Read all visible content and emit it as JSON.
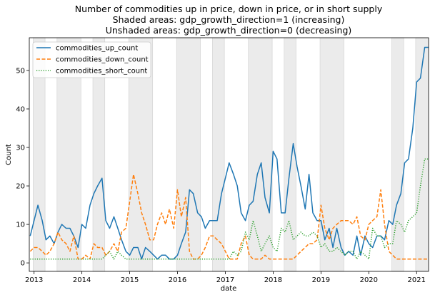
{
  "chart_data": {
    "type": "line",
    "title": [
      "Number of commodities up in price, down in price, or in short supply",
      "Shaded areas: gdp_growth_direction=1 (increasing)",
      "Unshaded areas: gdp_growth_direction=0 (decreasing)"
    ],
    "xlabel": "date",
    "ylabel": "Count",
    "xlim": [
      2012.9,
      2021.25
    ],
    "ylim": [
      -2.2,
      58.5
    ],
    "x_ticks": [
      2013,
      2014,
      2015,
      2016,
      2017,
      2018,
      2019,
      2020,
      2021
    ],
    "y_ticks": [
      0,
      10,
      20,
      30,
      40,
      50
    ],
    "grid": false,
    "legend_position": "top-left",
    "shaded_periods": [
      [
        2012.98,
        2013.23
      ],
      [
        2013.48,
        2013.98
      ],
      [
        2014.23,
        2014.48
      ],
      [
        2014.98,
        2015.48
      ],
      [
        2015.98,
        2016.48
      ],
      [
        2016.73,
        2016.98
      ],
      [
        2017.48,
        2017.98
      ],
      [
        2018.23,
        2018.48
      ],
      [
        2018.98,
        2019.48
      ],
      [
        2020.48,
        2020.73
      ],
      [
        2020.98,
        2021.25
      ]
    ],
    "series": [
      {
        "name": "commodities_up_count",
        "color": "#1f77b4",
        "dash": "solid",
        "x": [
          2012.92,
          2013.0,
          2013.08,
          2013.17,
          2013.25,
          2013.33,
          2013.42,
          2013.5,
          2013.58,
          2013.67,
          2013.75,
          2013.83,
          2013.92,
          2014.0,
          2014.08,
          2014.17,
          2014.25,
          2014.33,
          2014.42,
          2014.5,
          2014.58,
          2014.67,
          2014.75,
          2014.83,
          2014.92,
          2015.0,
          2015.08,
          2015.17,
          2015.25,
          2015.33,
          2015.42,
          2015.5,
          2015.58,
          2015.67,
          2015.75,
          2015.83,
          2015.92,
          2016.0,
          2016.08,
          2016.17,
          2016.25,
          2016.33,
          2016.42,
          2016.5,
          2016.58,
          2016.67,
          2016.75,
          2016.83,
          2016.92,
          2017.0,
          2017.08,
          2017.17,
          2017.25,
          2017.33,
          2017.42,
          2017.5,
          2017.58,
          2017.67,
          2017.75,
          2017.83,
          2017.92,
          2018.0,
          2018.08,
          2018.17,
          2018.25,
          2018.33,
          2018.42,
          2018.5,
          2018.58,
          2018.67,
          2018.75,
          2018.83,
          2018.92,
          2019.0,
          2019.08,
          2019.17,
          2019.25,
          2019.33,
          2019.42,
          2019.5,
          2019.58,
          2019.67,
          2019.75,
          2019.83,
          2019.92,
          2020.0,
          2020.08,
          2020.17,
          2020.25,
          2020.33,
          2020.42,
          2020.5,
          2020.58,
          2020.67,
          2020.75,
          2020.83,
          2020.92,
          2021.0,
          2021.08,
          2021.17,
          2021.25
        ],
        "y": [
          7,
          11,
          15,
          11,
          6,
          7,
          5,
          8,
          10,
          9,
          9,
          7,
          4,
          10,
          9,
          15,
          18,
          20,
          22,
          11,
          9,
          12,
          9,
          6,
          3,
          2,
          4,
          4,
          1,
          4,
          3,
          2,
          1,
          2,
          2,
          1,
          1,
          2,
          5,
          8,
          19,
          18,
          13,
          12,
          9,
          11,
          11,
          11,
          18,
          22,
          26,
          23,
          20,
          13,
          11,
          15,
          16,
          23,
          26,
          17,
          13,
          29,
          27,
          13,
          13,
          22,
          31,
          25,
          20,
          14,
          23,
          13,
          11,
          11,
          6,
          9,
          4,
          9,
          4,
          2,
          3,
          2,
          7,
          2,
          7,
          5,
          4,
          7,
          7,
          6,
          11,
          10,
          15,
          18,
          26,
          27,
          35,
          47,
          48,
          56,
          56
        ]
      },
      {
        "name": "commodities_down_count",
        "color": "#ff7f0e",
        "dash": "dashed",
        "x": [
          2012.92,
          2013.0,
          2013.08,
          2013.17,
          2013.25,
          2013.33,
          2013.42,
          2013.5,
          2013.58,
          2013.67,
          2013.75,
          2013.83,
          2013.92,
          2014.0,
          2014.08,
          2014.17,
          2014.25,
          2014.33,
          2014.42,
          2014.5,
          2014.58,
          2014.67,
          2014.75,
          2014.83,
          2014.92,
          2015.0,
          2015.08,
          2015.17,
          2015.25,
          2015.33,
          2015.42,
          2015.5,
          2015.58,
          2015.67,
          2015.75,
          2015.83,
          2015.92,
          2016.0,
          2016.08,
          2016.17,
          2016.25,
          2016.33,
          2016.42,
          2016.5,
          2016.58,
          2016.67,
          2016.75,
          2016.83,
          2016.92,
          2017.0,
          2017.08,
          2017.17,
          2017.25,
          2017.33,
          2017.42,
          2017.5,
          2017.58,
          2017.67,
          2017.75,
          2017.83,
          2017.92,
          2018.0,
          2018.08,
          2018.17,
          2018.25,
          2018.33,
          2018.42,
          2018.5,
          2018.58,
          2018.67,
          2018.75,
          2018.83,
          2018.92,
          2019.0,
          2019.08,
          2019.17,
          2019.25,
          2019.33,
          2019.42,
          2019.5,
          2019.58,
          2019.67,
          2019.75,
          2019.83,
          2019.92,
          2020.0,
          2020.08,
          2020.17,
          2020.25,
          2020.33,
          2020.42,
          2020.5,
          2020.58,
          2020.67,
          2020.75,
          2020.83,
          2020.92,
          2021.0,
          2021.08,
          2021.17,
          2021.25
        ],
        "y": [
          3,
          4,
          4,
          3,
          2,
          3,
          5,
          8,
          6,
          5,
          3,
          7,
          1,
          1,
          2,
          1,
          5,
          4,
          4,
          2,
          3,
          5,
          3,
          8,
          9,
          16,
          23,
          18,
          13,
          10,
          6,
          6,
          10,
          13,
          10,
          14,
          9,
          19,
          12,
          17,
          3,
          1,
          1,
          2,
          4,
          7,
          7,
          6,
          5,
          3,
          1,
          1,
          1,
          5,
          7,
          2,
          1,
          1,
          1,
          2,
          1,
          1,
          1,
          1,
          1,
          1,
          1,
          2,
          3,
          4,
          5,
          5,
          6,
          15,
          9,
          6,
          9,
          10,
          11,
          11,
          11,
          10,
          12,
          7,
          6,
          10,
          11,
          12,
          19,
          10,
          3,
          2,
          1,
          1,
          1,
          1,
          1,
          1,
          1,
          1,
          1
        ]
      },
      {
        "name": "commodities_short_count",
        "color": "#2ca02c",
        "dash": "dotted",
        "x": [
          2012.92,
          2013.0,
          2013.08,
          2013.17,
          2013.25,
          2013.33,
          2013.42,
          2013.5,
          2013.58,
          2013.67,
          2013.75,
          2013.83,
          2013.92,
          2014.0,
          2014.08,
          2014.17,
          2014.25,
          2014.33,
          2014.42,
          2014.5,
          2014.58,
          2014.67,
          2014.75,
          2014.83,
          2014.92,
          2015.0,
          2015.08,
          2015.17,
          2015.25,
          2015.33,
          2015.42,
          2015.5,
          2015.58,
          2015.67,
          2015.75,
          2015.83,
          2015.92,
          2016.0,
          2016.08,
          2016.17,
          2016.25,
          2016.33,
          2016.42,
          2016.5,
          2016.58,
          2016.67,
          2016.75,
          2016.83,
          2016.92,
          2017.0,
          2017.08,
          2017.17,
          2017.25,
          2017.33,
          2017.42,
          2017.5,
          2017.58,
          2017.67,
          2017.75,
          2017.83,
          2017.92,
          2018.0,
          2018.08,
          2018.17,
          2018.25,
          2018.33,
          2018.42,
          2018.5,
          2018.58,
          2018.67,
          2018.75,
          2018.83,
          2018.92,
          2019.0,
          2019.08,
          2019.17,
          2019.25,
          2019.33,
          2019.42,
          2019.5,
          2019.58,
          2019.67,
          2019.75,
          2019.83,
          2019.92,
          2020.0,
          2020.08,
          2020.17,
          2020.25,
          2020.33,
          2020.42,
          2020.5,
          2020.58,
          2020.67,
          2020.75,
          2020.83,
          2020.92,
          2021.0,
          2021.08,
          2021.17,
          2021.25
        ],
        "y": [
          1,
          1,
          1,
          1,
          1,
          1,
          1,
          1,
          1,
          1,
          1,
          1,
          1,
          1,
          1,
          1,
          1,
          1,
          1,
          2,
          3,
          1,
          3,
          2,
          1,
          1,
          1,
          1,
          1,
          1,
          1,
          1,
          1,
          1,
          1,
          1,
          1,
          1,
          1,
          1,
          1,
          1,
          1,
          1,
          1,
          1,
          1,
          1,
          1,
          1,
          1,
          3,
          2,
          3,
          8,
          6,
          11,
          7,
          3,
          5,
          7,
          4,
          3,
          9,
          8,
          11,
          6,
          7,
          8,
          7,
          7,
          8,
          7,
          4,
          5,
          3,
          3,
          4,
          3,
          2,
          3,
          3,
          1,
          3,
          2,
          1,
          9,
          7,
          7,
          4,
          5,
          5,
          11,
          10,
          8,
          11,
          12,
          13,
          20,
          27,
          27
        ]
      }
    ]
  }
}
